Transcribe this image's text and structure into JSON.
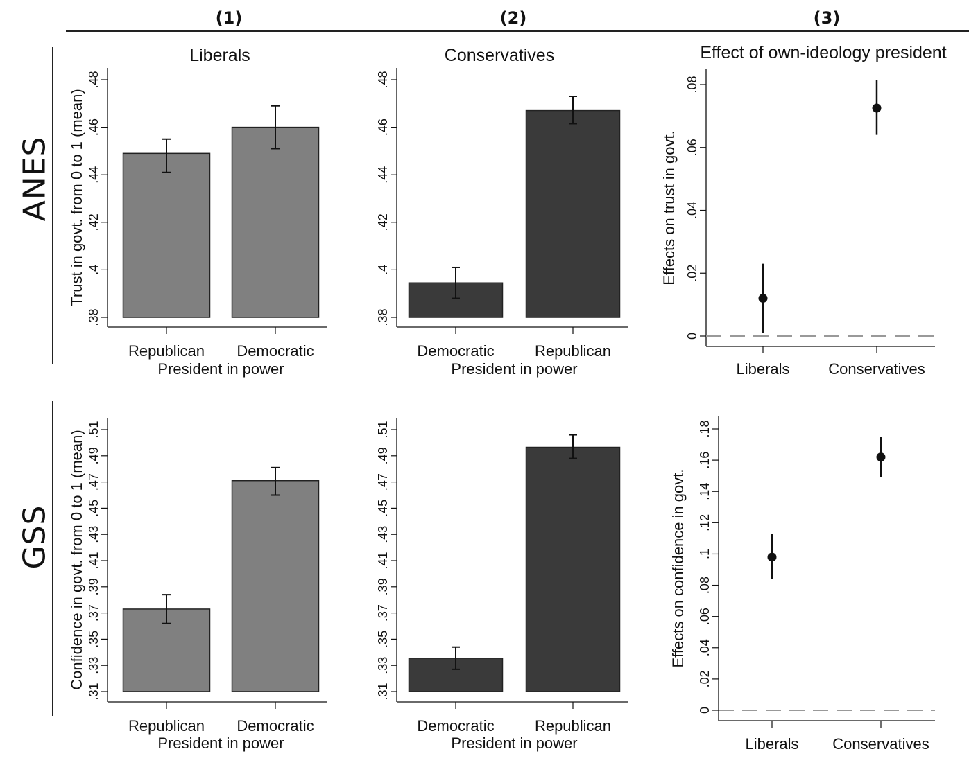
{
  "column_headers": [
    "(1)",
    "(2)",
    "(3)"
  ],
  "row_labels": [
    "ANES",
    "GSS"
  ],
  "colors": {
    "liberals_bar": "#808080",
    "conservatives_bar": "#3a3a3a",
    "ink": "#111111",
    "zero_line": "#999999"
  },
  "chart_data": [
    {
      "type": "bar",
      "panel": "ANES-Liberals",
      "title": "Liberals",
      "xlabel": "President in power",
      "ylabel": "Trust in govt. from 0 to 1 (mean)",
      "categories": [
        "Republican",
        "Democratic"
      ],
      "values": [
        0.449,
        0.46
      ],
      "ci_low": [
        0.441,
        0.451
      ],
      "ci_high": [
        0.455,
        0.469
      ],
      "ylim": [
        0.38,
        0.483
      ],
      "yticks": [
        0.38,
        0.4,
        0.42,
        0.44,
        0.46,
        0.48
      ],
      "ytick_labels": [
        ".38",
        ".4",
        ".42",
        ".44",
        ".46",
        ".48"
      ]
    },
    {
      "type": "bar",
      "panel": "ANES-Conservatives",
      "title": "Conservatives",
      "xlabel": "President in power",
      "ylabel": "",
      "categories": [
        "Democratic",
        "Republican"
      ],
      "values": [
        0.3945,
        0.467
      ],
      "ci_low": [
        0.388,
        0.4615
      ],
      "ci_high": [
        0.401,
        0.473
      ],
      "ylim": [
        0.38,
        0.483
      ],
      "yticks": [
        0.38,
        0.4,
        0.42,
        0.44,
        0.46,
        0.48
      ],
      "ytick_labels": [
        ".38",
        ".4",
        ".42",
        ".44",
        ".46",
        ".48"
      ]
    },
    {
      "type": "scatter",
      "panel": "ANES-Effects",
      "title": "Effect of own-ideology president",
      "xlabel": "",
      "ylabel": "Effects on trust in govt.",
      "categories": [
        "Liberals",
        "Conservatives"
      ],
      "values": [
        0.012,
        0.0725
      ],
      "ci_low": [
        0.001,
        0.064
      ],
      "ci_high": [
        0.023,
        0.0815
      ],
      "ylim": [
        -0.003,
        0.083
      ],
      "yticks": [
        0,
        0.02,
        0.04,
        0.06,
        0.08
      ],
      "ytick_labels": [
        "0",
        ".02",
        ".04",
        ".06",
        ".08"
      ]
    },
    {
      "type": "bar",
      "panel": "GSS-Liberals",
      "title": "",
      "xlabel": "President in power",
      "ylabel": "Confidence in govt. from 0 to 1 (mean)",
      "categories": [
        "Republican",
        "Democratic"
      ],
      "values": [
        0.373,
        0.471
      ],
      "ci_low": [
        0.362,
        0.46
      ],
      "ci_high": [
        0.384,
        0.481
      ],
      "ylim": [
        0.31,
        0.5165
      ],
      "yticks": [
        0.31,
        0.33,
        0.35,
        0.37,
        0.39,
        0.41,
        0.43,
        0.45,
        0.47,
        0.49,
        0.51
      ],
      "ytick_labels": [
        ".31",
        ".33",
        ".35",
        ".37",
        ".39",
        ".41",
        ".43",
        ".45",
        ".47",
        ".49",
        ".51"
      ]
    },
    {
      "type": "bar",
      "panel": "GSS-Conservatives",
      "title": "",
      "xlabel": "President in power",
      "ylabel": "",
      "categories": [
        "Democratic",
        "Republican"
      ],
      "values": [
        0.3355,
        0.4965
      ],
      "ci_low": [
        0.327,
        0.488
      ],
      "ci_high": [
        0.344,
        0.506
      ],
      "ylim": [
        0.31,
        0.5165
      ],
      "yticks": [
        0.31,
        0.33,
        0.35,
        0.37,
        0.39,
        0.41,
        0.43,
        0.45,
        0.47,
        0.49,
        0.51
      ],
      "ytick_labels": [
        ".31",
        ".33",
        ".35",
        ".37",
        ".39",
        ".41",
        ".43",
        ".45",
        ".47",
        ".49",
        ".51"
      ]
    },
    {
      "type": "scatter",
      "panel": "GSS-Effects",
      "title": "",
      "xlabel": "",
      "ylabel": "Effects on confidence in govt.",
      "categories": [
        "Liberals",
        "Conservatives"
      ],
      "values": [
        0.098,
        0.162
      ],
      "ci_low": [
        0.084,
        0.149
      ],
      "ci_high": [
        0.113,
        0.175
      ],
      "ylim": [
        -0.008,
        0.182
      ],
      "yticks": [
        0,
        0.02,
        0.04,
        0.06,
        0.08,
        0.1,
        0.12,
        0.14,
        0.16,
        0.18
      ],
      "ytick_labels": [
        "0",
        ".02",
        ".04",
        ".06",
        ".08",
        ".1",
        ".12",
        ".14",
        ".16",
        ".18"
      ]
    }
  ]
}
